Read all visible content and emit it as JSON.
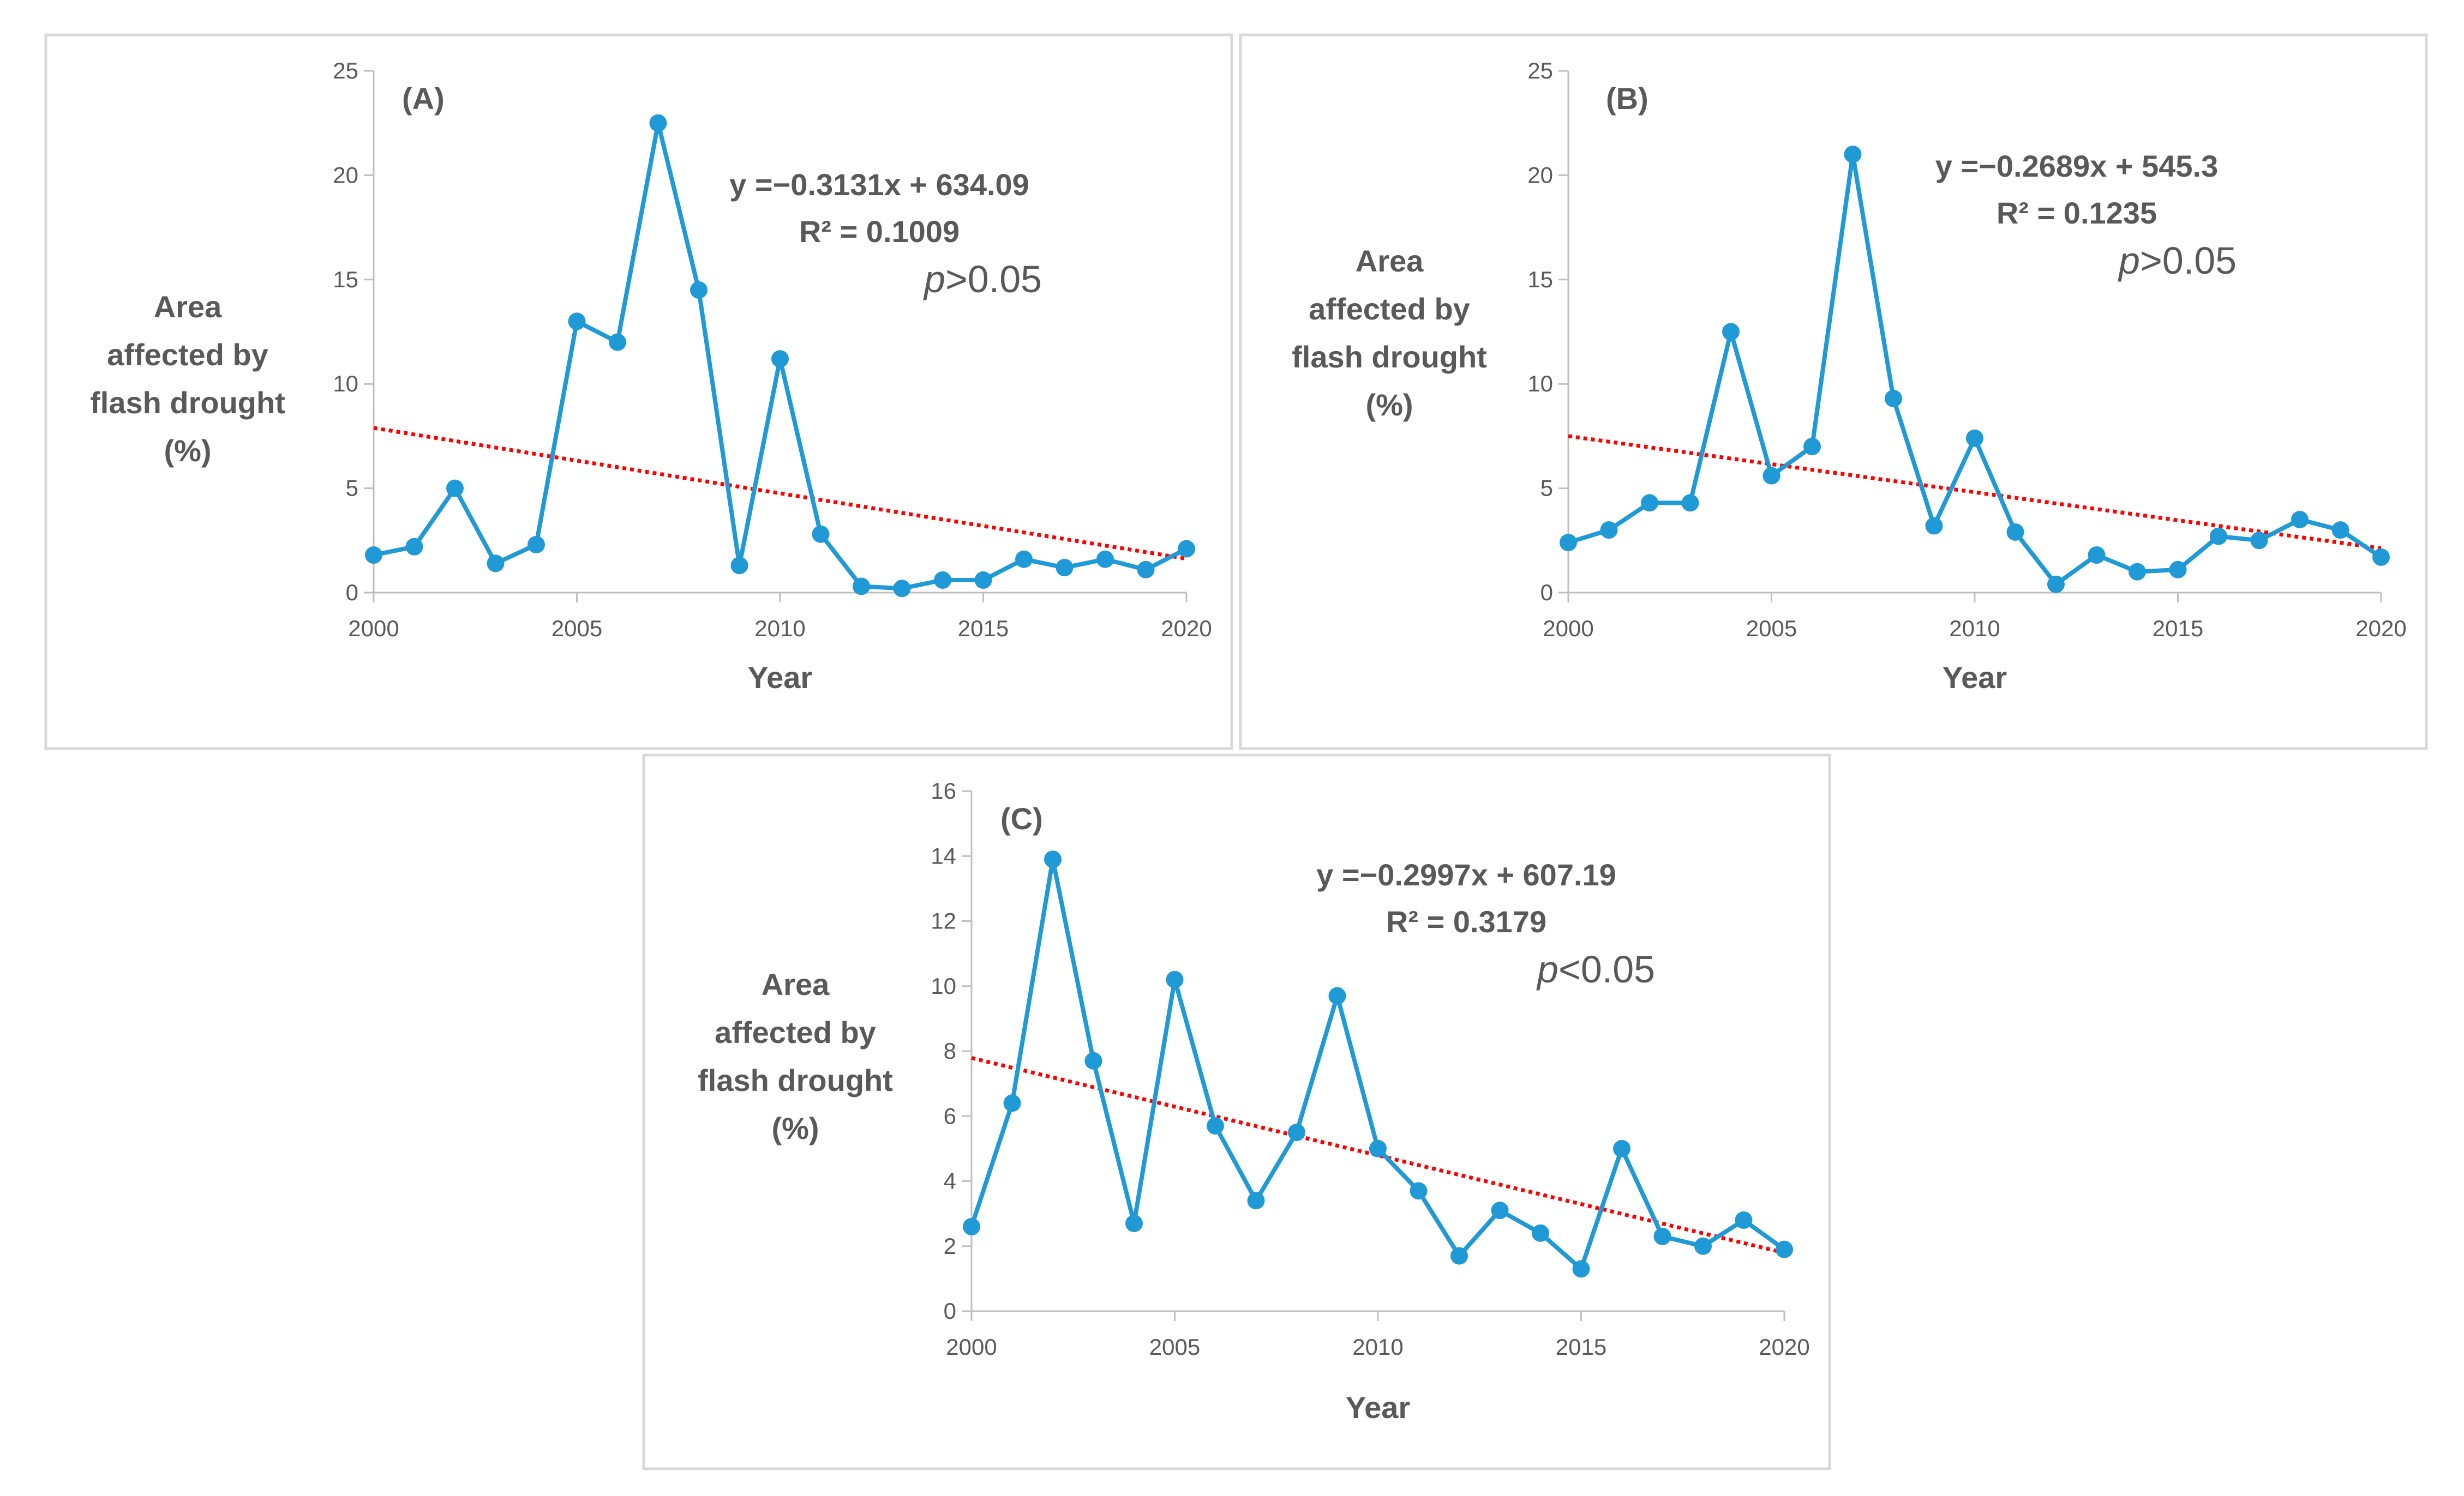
{
  "chart_data": [
    {
      "type": "line",
      "panel": "(A)",
      "x": [
        2000,
        2001,
        2002,
        2003,
        2004,
        2005,
        2006,
        2007,
        2008,
        2009,
        2010,
        2011,
        2012,
        2013,
        2014,
        2015,
        2016,
        2017,
        2018,
        2019,
        2020
      ],
      "values": [
        1.8,
        2.2,
        5.0,
        1.4,
        2.3,
        13.0,
        12.0,
        22.5,
        14.5,
        1.3,
        11.2,
        2.8,
        0.3,
        0.2,
        0.6,
        0.6,
        1.6,
        1.2,
        1.6,
        1.1,
        2.1
      ],
      "xlabel": "Year",
      "ylabel_lines": [
        "Area",
        "affected by",
        "flash drought",
        "(%)"
      ],
      "xticks": [
        2000,
        2005,
        2010,
        2015,
        2020
      ],
      "yticks": [
        0,
        5,
        10,
        15,
        20,
        25
      ],
      "xlim": [
        2000,
        2020
      ],
      "ylim": [
        0,
        25
      ],
      "trendline": {
        "slope": -0.3131,
        "intercept": 634.09
      },
      "equation": "y =−0.3131x + 634.09",
      "r2": "R² = 0.1009",
      "p_symbol": "p",
      "p_rest": ">0.05",
      "series_color": "#1f9ad6",
      "trend_color": "#ff0000"
    },
    {
      "type": "line",
      "panel": "(B)",
      "x": [
        2000,
        2001,
        2002,
        2003,
        2004,
        2005,
        2006,
        2007,
        2008,
        2009,
        2010,
        2011,
        2012,
        2013,
        2014,
        2015,
        2016,
        2017,
        2018,
        2019,
        2020
      ],
      "values": [
        2.4,
        3.0,
        4.3,
        4.3,
        12.5,
        5.6,
        7.0,
        21.0,
        9.3,
        3.2,
        7.4,
        2.9,
        0.4,
        1.8,
        1.0,
        1.1,
        2.7,
        2.5,
        3.5,
        3.0,
        1.7
      ],
      "xlabel": "Year",
      "ylabel_lines": [
        "Area",
        "affected by",
        "flash drought",
        "(%)"
      ],
      "xticks": [
        2000,
        2005,
        2010,
        2015,
        2020
      ],
      "yticks": [
        0,
        5,
        10,
        15,
        20,
        25
      ],
      "xlim": [
        2000,
        2020
      ],
      "ylim": [
        0,
        25
      ],
      "trendline": {
        "slope": -0.2689,
        "intercept": 545.3
      },
      "equation": "y =−0.2689x + 545.3",
      "r2": "R² = 0.1235",
      "p_symbol": "p",
      "p_rest": ">0.05",
      "series_color": "#1f9ad6",
      "trend_color": "#ff0000"
    },
    {
      "type": "line",
      "panel": "(C)",
      "x": [
        2000,
        2001,
        2002,
        2003,
        2004,
        2005,
        2006,
        2007,
        2008,
        2009,
        2010,
        2011,
        2012,
        2013,
        2014,
        2015,
        2016,
        2017,
        2018,
        2019,
        2020
      ],
      "values": [
        2.6,
        6.4,
        13.9,
        7.7,
        2.7,
        10.2,
        5.7,
        3.4,
        5.5,
        9.7,
        5.0,
        3.7,
        1.7,
        3.1,
        2.4,
        1.3,
        5.0,
        2.3,
        2.0,
        2.8,
        1.9
      ],
      "xlabel": "Year",
      "ylabel_lines": [
        "Area",
        "affected by",
        "flash drought",
        "(%)"
      ],
      "xticks": [
        2000,
        2005,
        2010,
        2015,
        2020
      ],
      "yticks": [
        0,
        2,
        4,
        6,
        8,
        10,
        12,
        14,
        16
      ],
      "xlim": [
        2000,
        2020
      ],
      "ylim": [
        0,
        16
      ],
      "trendline": {
        "slope": -0.2997,
        "intercept": 607.19
      },
      "equation": "y =−0.2997x + 607.19",
      "r2": "R² = 0.3179",
      "p_symbol": "p",
      "p_rest": "<0.05",
      "series_color": "#1f9ad6",
      "trend_color": "#ff0000"
    }
  ]
}
